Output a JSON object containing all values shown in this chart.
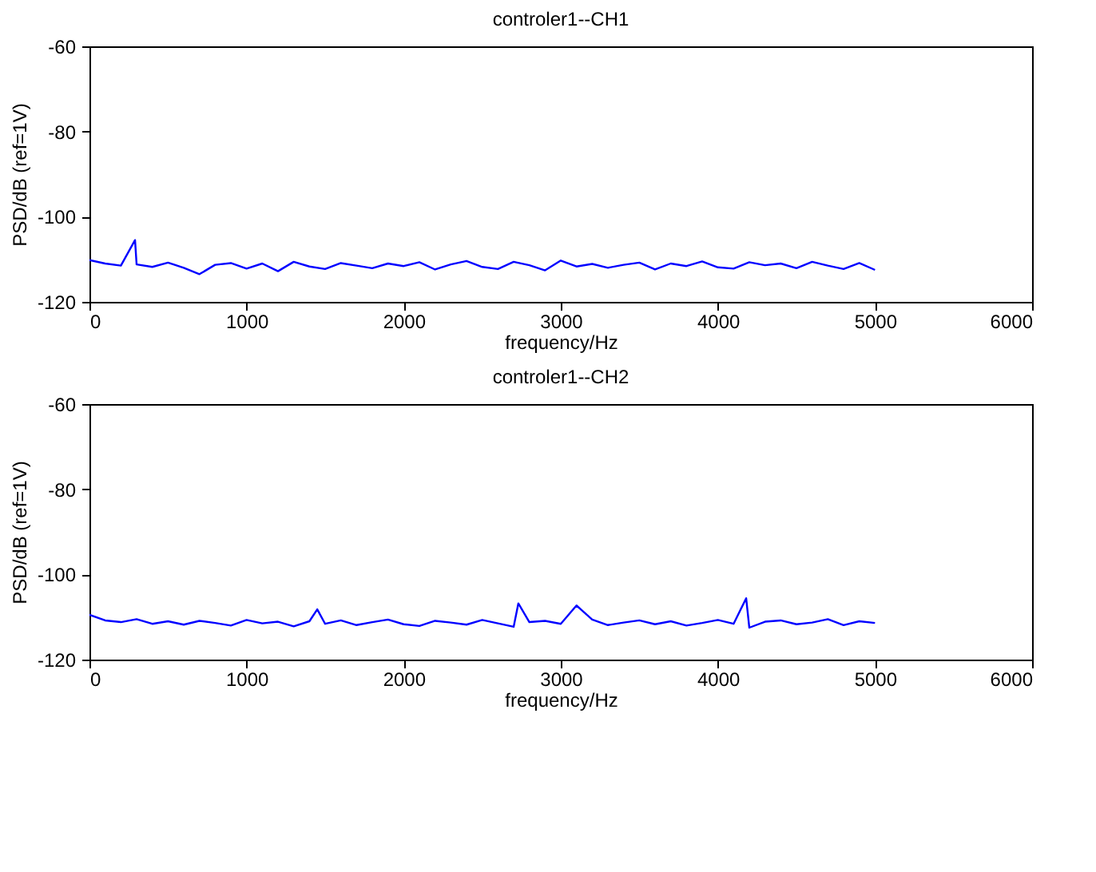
{
  "chart_data": [
    {
      "type": "line",
      "title": "controler1--CH1",
      "xlabel": "frequency/Hz",
      "ylabel": "PSD/dB (ref=1V)",
      "xlim": [
        0,
        6000
      ],
      "ylim": [
        -120,
        -60
      ],
      "xticks": [
        0,
        1000,
        2000,
        3000,
        4000,
        5000,
        6000
      ],
      "yticks": [
        -120,
        -100,
        -80,
        -60
      ],
      "grid": false,
      "line_style": "solid",
      "x": [
        0,
        100,
        200,
        290,
        300,
        400,
        500,
        600,
        700,
        800,
        900,
        1000,
        1100,
        1200,
        1300,
        1400,
        1500,
        1600,
        1700,
        1800,
        1900,
        2000,
        2100,
        2200,
        2300,
        2400,
        2500,
        2600,
        2700,
        2800,
        2900,
        3000,
        3100,
        3200,
        3300,
        3400,
        3500,
        3600,
        3700,
        3800,
        3900,
        4000,
        4100,
        4200,
        4300,
        4400,
        4500,
        4600,
        4700,
        4800,
        4900,
        5000
      ],
      "series": [
        {
          "color": "#0000ff",
          "values": [
            -110.2,
            -111.0,
            -111.5,
            -105.5,
            -111.2,
            -111.8,
            -110.8,
            -112.0,
            -113.5,
            -111.3,
            -110.9,
            -112.2,
            -111.0,
            -112.8,
            -110.6,
            -111.7,
            -112.3,
            -110.9,
            -111.5,
            -112.1,
            -111.0,
            -111.6,
            -110.7,
            -112.4,
            -111.2,
            -110.4,
            -111.8,
            -112.3,
            -110.6,
            -111.4,
            -112.6,
            -110.3,
            -111.7,
            -111.1,
            -112.0,
            -111.3,
            -110.8,
            -112.4,
            -111.0,
            -111.6,
            -110.5,
            -111.9,
            -112.2,
            -110.7,
            -111.4,
            -111.0,
            -112.1,
            -110.6,
            -111.5,
            -112.3,
            -110.9,
            -112.5
          ]
        }
      ]
    },
    {
      "type": "line",
      "title": "controler1--CH2",
      "xlabel": "frequency/Hz",
      "ylabel": "PSD/dB (ref=1V)",
      "xlim": [
        0,
        6000
      ],
      "ylim": [
        -120,
        -60
      ],
      "xticks": [
        0,
        1000,
        2000,
        3000,
        4000,
        5000,
        6000
      ],
      "yticks": [
        -120,
        -100,
        -80,
        -60
      ],
      "grid": false,
      "line_style": "solid",
      "x": [
        0,
        100,
        200,
        300,
        400,
        500,
        600,
        700,
        800,
        900,
        1000,
        1100,
        1200,
        1300,
        1400,
        1450,
        1500,
        1600,
        1700,
        1800,
        1900,
        2000,
        2100,
        2200,
        2300,
        2400,
        2500,
        2600,
        2700,
        2730,
        2800,
        2900,
        3000,
        3100,
        3200,
        3300,
        3400,
        3500,
        3600,
        3700,
        3800,
        3900,
        4000,
        4100,
        4180,
        4200,
        4300,
        4400,
        4500,
        4600,
        4700,
        4800,
        4900,
        5000
      ],
      "series": [
        {
          "color": "#0000ff",
          "values": [
            -109.5,
            -110.8,
            -111.2,
            -110.5,
            -111.6,
            -111.0,
            -111.8,
            -110.9,
            -111.4,
            -112.0,
            -110.7,
            -111.5,
            -111.1,
            -112.2,
            -111.0,
            -108.2,
            -111.6,
            -110.8,
            -111.9,
            -111.2,
            -110.6,
            -111.7,
            -112.1,
            -110.9,
            -111.3,
            -111.8,
            -110.7,
            -111.5,
            -112.3,
            -106.8,
            -111.2,
            -110.9,
            -111.6,
            -107.3,
            -110.6,
            -111.9,
            -111.3,
            -110.8,
            -111.7,
            -111.0,
            -112.0,
            -111.4,
            -110.7,
            -111.6,
            -105.6,
            -112.5,
            -111.1,
            -110.8,
            -111.7,
            -111.3,
            -110.5,
            -111.9,
            -111.0,
            -111.4
          ]
        }
      ]
    }
  ]
}
